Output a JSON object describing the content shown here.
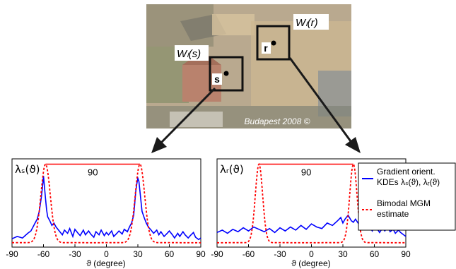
{
  "photo": {
    "credit": "Budapest 2008 ©",
    "window_s_label": "Wₗ(s)",
    "window_r_label": "Wₗ(r)",
    "point_s": "s",
    "point_r": "r"
  },
  "colors": {
    "kde": "#0000ff",
    "mgm": "#ff0000",
    "arrow": "#1a1a1a"
  },
  "chart_data": [
    {
      "type": "line",
      "title": "",
      "ylabel": "λₛ(ϑ)",
      "xlabel": "ϑ (degree)",
      "xlim": [
        -90,
        90
      ],
      "xticks": [
        "-90",
        "-60",
        "-30",
        "0",
        "30",
        "60",
        "90"
      ],
      "ylim": [
        0,
        1
      ],
      "annotation": "90",
      "annotation_span": [
        -58,
        32
      ],
      "series": [
        {
          "name": "Gradient orient. KDEs λₛ(ϑ), λᵣ(ϑ)",
          "style": "solid",
          "x": [
            -90,
            -85,
            -80,
            -75,
            -72,
            -70,
            -68,
            -66,
            -64,
            -62,
            -61,
            -60,
            -59,
            -58,
            -57,
            -56,
            -54,
            -52,
            -50,
            -48,
            -45,
            -42,
            -40,
            -37,
            -35,
            -32,
            -30,
            -27,
            -25,
            -22,
            -20,
            -17,
            -15,
            -12,
            -10,
            -7,
            -5,
            -2,
            0,
            2,
            5,
            7,
            10,
            12,
            15,
            17,
            20,
            22,
            24,
            26,
            27,
            28,
            29,
            30,
            31,
            32,
            33,
            34,
            36,
            38,
            40,
            42,
            45,
            48,
            50,
            52,
            55,
            58,
            60,
            63,
            65,
            68,
            70,
            73,
            75,
            78,
            80,
            83,
            85,
            88,
            90
          ],
          "values": [
            0.05,
            0.08,
            0.06,
            0.12,
            0.15,
            0.2,
            0.25,
            0.3,
            0.4,
            0.58,
            0.7,
            0.85,
            0.7,
            0.55,
            0.42,
            0.33,
            0.28,
            0.22,
            0.25,
            0.2,
            0.15,
            0.1,
            0.16,
            0.12,
            0.18,
            0.08,
            0.17,
            0.12,
            0.09,
            0.16,
            0.1,
            0.15,
            0.11,
            0.07,
            0.14,
            0.1,
            0.16,
            0.09,
            0.13,
            0.1,
            0.15,
            0.08,
            0.12,
            0.15,
            0.11,
            0.17,
            0.14,
            0.2,
            0.25,
            0.35,
            0.5,
            0.65,
            0.75,
            0.82,
            0.78,
            0.65,
            0.52,
            0.4,
            0.32,
            0.25,
            0.2,
            0.17,
            0.12,
            0.16,
            0.1,
            0.14,
            0.08,
            0.12,
            0.15,
            0.1,
            0.06,
            0.12,
            0.08,
            0.14,
            0.1,
            0.06,
            0.09,
            0.13,
            0.07,
            0.04,
            0.06
          ]
        },
        {
          "name": "Bimodal MGM estimate",
          "style": "dashed",
          "model": {
            "mu": [
              -58,
              32
            ],
            "sigma": 4.5,
            "peak": 1.0
          }
        }
      ]
    },
    {
      "type": "line",
      "title": "",
      "ylabel": "λᵣ(ϑ)",
      "xlabel": "ϑ (degree)",
      "xlim": [
        -90,
        90
      ],
      "xticks": [
        "-90",
        "-60",
        "-30",
        "0",
        "30",
        "60",
        "90"
      ],
      "ylim": [
        0,
        1
      ],
      "annotation": "90",
      "annotation_span": [
        -50,
        40
      ],
      "series": [
        {
          "name": "Gradient orient. KDEs λₛ(ϑ), λᵣ(ϑ)",
          "style": "solid",
          "x": [
            -90,
            -85,
            -80,
            -75,
            -70,
            -65,
            -60,
            -55,
            -50,
            -45,
            -40,
            -35,
            -30,
            -25,
            -20,
            -15,
            -10,
            -5,
            0,
            5,
            10,
            15,
            20,
            25,
            28,
            30,
            32,
            35,
            38,
            40,
            42,
            45,
            48,
            50,
            52,
            55,
            58,
            60,
            63,
            65,
            68,
            70,
            73,
            75,
            78,
            80,
            83,
            85,
            88,
            90
          ],
          "values": [
            0.13,
            0.16,
            0.12,
            0.17,
            0.14,
            0.19,
            0.15,
            0.2,
            0.17,
            0.14,
            0.18,
            0.13,
            0.19,
            0.15,
            0.2,
            0.16,
            0.22,
            0.17,
            0.24,
            0.2,
            0.18,
            0.25,
            0.22,
            0.28,
            0.32,
            0.25,
            0.3,
            0.35,
            0.28,
            0.26,
            0.3,
            0.24,
            0.2,
            0.25,
            0.18,
            0.22,
            0.15,
            0.2,
            0.17,
            0.13,
            0.19,
            0.15,
            0.21,
            0.14,
            0.17,
            0.12,
            0.16,
            0.13,
            0.1,
            0.08
          ]
        },
        {
          "name": "Bimodal MGM estimate",
          "style": "dashed",
          "model": {
            "mu": [
              -50,
              40
            ],
            "sigma": 3.5,
            "peak": 1.0
          }
        }
      ]
    }
  ],
  "legend": {
    "line1_a": "Gradient orient.",
    "line1_b": "KDEs λₛ(ϑ), λᵣ(ϑ)",
    "line2_a": "Bimodal MGM",
    "line2_b": "estimate"
  }
}
